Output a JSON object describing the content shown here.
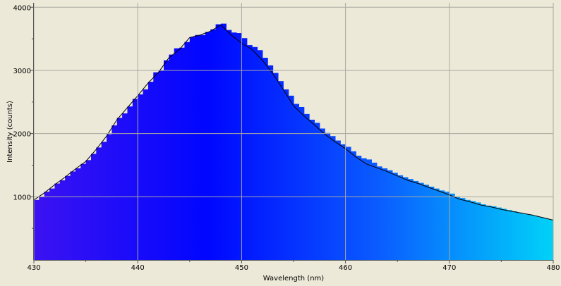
{
  "chart_data": {
    "type": "spectrum",
    "xlabel": "Wavelength (nm)",
    "ylabel": "Intensity (counts)",
    "xlim": [
      430,
      480
    ],
    "ylim": [
      0,
      4070
    ],
    "xticks": [
      430,
      440,
      450,
      460,
      470,
      480
    ],
    "yticks": [
      1000,
      2000,
      3000,
      4000
    ],
    "xminor": [
      435,
      445,
      455,
      465,
      475
    ],
    "yminor": [
      500,
      1500,
      2500,
      3500
    ],
    "grid": true,
    "series": [
      {
        "kind": "bars",
        "color": [
          "#3c12f2",
          "#0006ff",
          "#0a5dff",
          "#00d2f8"
        ],
        "x": [
          430,
          430.5,
          431,
          431.5,
          432,
          432.5,
          433,
          433.5,
          434,
          434.5,
          435,
          435.5,
          436,
          436.5,
          437,
          437.5,
          438,
          438.5,
          439,
          439.5,
          440,
          440.5,
          441,
          441.5,
          442,
          442.5,
          443,
          443.5,
          444,
          444.5,
          445,
          445.5,
          446,
          446.5,
          447,
          447.5,
          448,
          448.5,
          449,
          449.5,
          450,
          450.5,
          451,
          451.5,
          452,
          452.5,
          453,
          453.5,
          454,
          454.5,
          455,
          455.5,
          456,
          456.5,
          457,
          457.5,
          458,
          458.5,
          459,
          459.5,
          460,
          460.5,
          461,
          461.5,
          462,
          462.5,
          463,
          463.5,
          464,
          464.5,
          465,
          465.5,
          466,
          466.5,
          467,
          467.5,
          468,
          468.5,
          469,
          469.5,
          470,
          470.5,
          471,
          471.5,
          472,
          472.5,
          473,
          473.5,
          474,
          474.5,
          475,
          475.5,
          476,
          476.5,
          477,
          477.5,
          478,
          478.5,
          479,
          479.5,
          480
        ],
        "values": [
          950,
          1000,
          1080,
          1130,
          1210,
          1260,
          1330,
          1400,
          1450,
          1520,
          1580,
          1680,
          1780,
          1870,
          1990,
          2130,
          2250,
          2320,
          2430,
          2550,
          2620,
          2700,
          2820,
          2970,
          3000,
          3160,
          3250,
          3350,
          3360,
          3450,
          3530,
          3560,
          3560,
          3610,
          3650,
          3730,
          3740,
          3640,
          3600,
          3590,
          3510,
          3400,
          3370,
          3320,
          3200,
          3080,
          2960,
          2830,
          2700,
          2600,
          2470,
          2420,
          2310,
          2220,
          2170,
          2080,
          2010,
          1960,
          1890,
          1830,
          1790,
          1720,
          1650,
          1610,
          1590,
          1540,
          1480,
          1450,
          1420,
          1380,
          1340,
          1310,
          1280,
          1250,
          1220,
          1190,
          1160,
          1130,
          1100,
          1080,
          1050,
          1000,
          980,
          950,
          930,
          910,
          880,
          860,
          850,
          830,
          810,
          790,
          770,
          750,
          730,
          720,
          700,
          680,
          660,
          640,
          620
        ]
      },
      {
        "kind": "line",
        "color": "#000000",
        "x": [
          430,
          431,
          432,
          433,
          434,
          435,
          436,
          437,
          438,
          439,
          440,
          441,
          442,
          443,
          444,
          445,
          446,
          447,
          448,
          449,
          450,
          451,
          452,
          453,
          454,
          455,
          456,
          457,
          458,
          459,
          460,
          461,
          462,
          463,
          464,
          465,
          466,
          467,
          468,
          469,
          470,
          471,
          472,
          473,
          474,
          475,
          476,
          477,
          478,
          479,
          480
        ],
        "values": [
          950,
          1060,
          1190,
          1310,
          1440,
          1560,
          1750,
          1960,
          2220,
          2410,
          2600,
          2800,
          2970,
          3200,
          3330,
          3520,
          3560,
          3620,
          3720,
          3560,
          3430,
          3330,
          3160,
          2950,
          2700,
          2440,
          2280,
          2140,
          1990,
          1870,
          1760,
          1630,
          1520,
          1460,
          1400,
          1330,
          1260,
          1210,
          1150,
          1090,
          1030,
          960,
          920,
          870,
          840,
          800,
          770,
          740,
          710,
          670,
          630
        ]
      }
    ]
  }
}
